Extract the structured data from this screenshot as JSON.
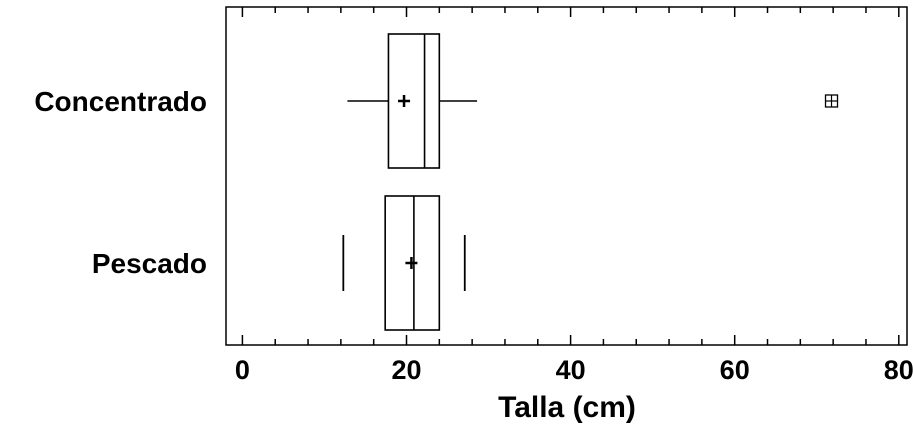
{
  "chart_data": {
    "type": "box",
    "orientation": "horizontal",
    "title": "",
    "xlabel": "Talla (cm)",
    "ylabel": "",
    "xlim": [
      -2,
      81
    ],
    "x_ticks": [
      0,
      20,
      40,
      60,
      80
    ],
    "x_tick_labels": [
      "0",
      "20",
      "40",
      "60",
      "80"
    ],
    "x_minor_step": 4,
    "categories": [
      "Concentrado",
      "Pescado"
    ],
    "boxes": [
      {
        "category": "Concentrado",
        "whisker_low": 12.8,
        "q1": 17.8,
        "median": 22.2,
        "q3": 24.0,
        "whisker_high": 28.6,
        "mean": 19.7,
        "outliers": [
          71.8
        ]
      },
      {
        "category": "Pescado",
        "whisker_low": 12.3,
        "q1": 17.4,
        "median": 20.9,
        "q3": 24.0,
        "whisker_high": 27.1,
        "mean": 20.6,
        "outliers": []
      }
    ],
    "grid": false,
    "legend": "none",
    "colors": {
      "stroke": "#000000",
      "background": "#ffffff"
    }
  }
}
